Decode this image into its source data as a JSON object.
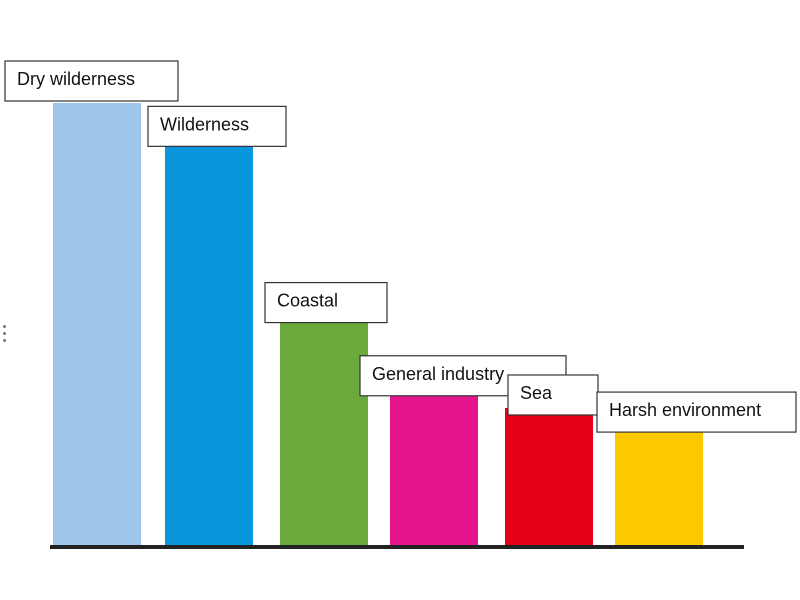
{
  "chart_data": {
    "type": "bar",
    "title": "",
    "xlabel": "",
    "ylabel": "",
    "ylim": [
      0,
      100
    ],
    "grid": false,
    "legend": "none",
    "categories": [
      "Dry wilderness",
      "Wilderness",
      "Coastal",
      "General industry",
      "Sea",
      "Harsh environment"
    ],
    "values": [
      100,
      92,
      51,
      41,
      31,
      26
    ],
    "colors": [
      "#9ec6ea",
      "#0a96dd",
      "#6aaa3c",
      "#e5158e",
      "#e5001a",
      "#fcc800"
    ]
  }
}
